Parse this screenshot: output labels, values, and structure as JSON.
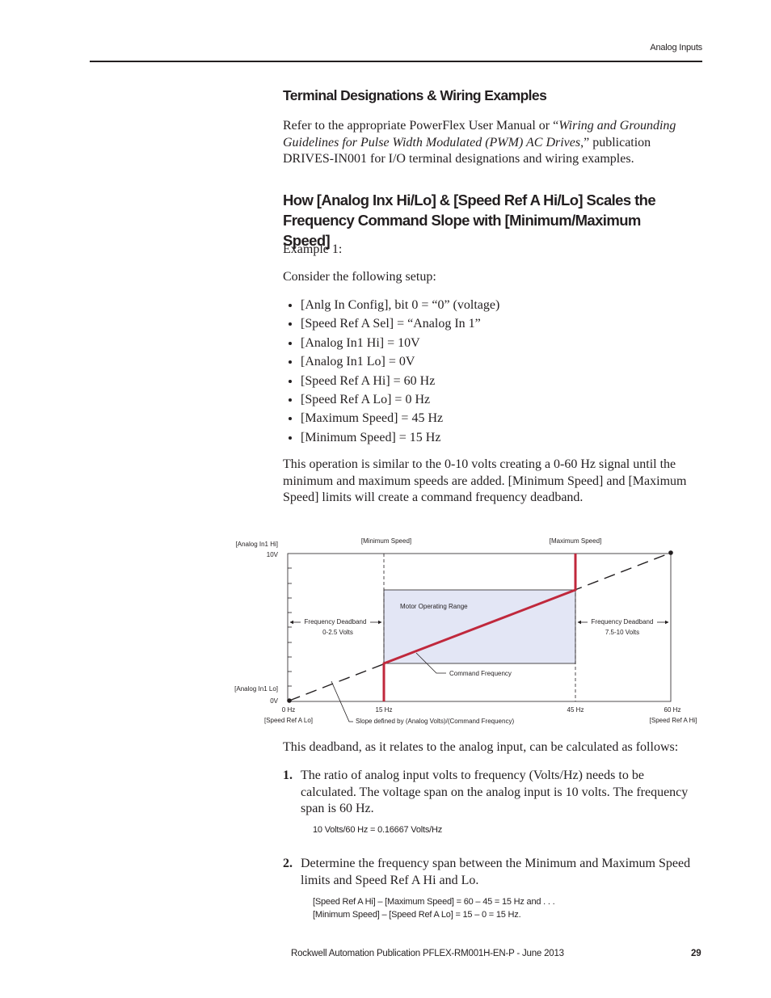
{
  "header_label": "Analog Inputs",
  "heading1": "Terminal Designations & Wiring Examples",
  "intro": {
    "before": "Refer to the appropriate PowerFlex User Manual or “",
    "italic": "Wiring and Grounding Guidelines for Pulse Width Modulated (PWM) AC Drives",
    "after": ",” publication DRIVES-IN001 for I/O terminal designations and wiring examples."
  },
  "heading2": "How [Analog Inx Hi/Lo] & [Speed Ref A Hi/Lo] Scales the Frequency Command Slope with [Minimum/Maximum Speed]",
  "example": "Example 1:",
  "setup_intro": "Consider the following setup:",
  "bullets": [
    "[Anlg In Config], bit 0 = “0” (voltage)",
    "[Speed Ref A Sel] = “Analog In 1”",
    "[Analog In1 Hi] = 10V",
    "[Analog In1 Lo] = 0V",
    "[Speed Ref A Hi] = 60 Hz",
    "[Speed Ref A Lo] = 0 Hz",
    "[Maximum Speed] = 45 Hz",
    "[Minimum Speed] = 15 Hz"
  ],
  "paragraph": "This operation is similar to the 0-10 volts creating a 0-60 Hz signal until the minimum and maximum speeds are added. [Minimum Speed] and [Maximum Speed] limits will create a command frequency deadband.",
  "diagram": {
    "y_hi_name": "[Analog In1 Hi]",
    "y_hi": "10V",
    "y_lo_name": "[Analog In1 Lo]",
    "y_lo": "0V",
    "min_speed": "[Minimum Speed]",
    "max_speed": "[Maximum Speed]",
    "range": "Motor Operating Range",
    "deadband_left": [
      "Frequency Deadband",
      "0-2.5 Volts"
    ],
    "deadband_right": [
      "Frequency Deadband",
      "7.5-10 Volts"
    ],
    "command": "Command Frequency",
    "x_labels": [
      "0 Hz",
      "15 Hz",
      "45 Hz",
      "60 Hz"
    ],
    "x_lo_name": "[Speed Ref A Lo]",
    "x_hi_name": "[Speed Ref A Hi]",
    "slope": "Slope defined by (Analog Volts)/(Command Frequency)"
  },
  "deadband_intro": "This deadband, as it relates to the analog input, can be calculated as follows:",
  "steps": [
    {
      "number": "1.",
      "text": "The ratio of analog input volts to frequency (Volts/Hz) needs to be calculated. The voltage span on the analog input is 10 volts. The frequency span is 60 Hz.",
      "formulas": [
        "10 Volts/60 Hz = 0.16667 Volts/Hz"
      ]
    },
    {
      "number": "2.",
      "text": "Determine the frequency span between the Minimum and Maximum Speed limits and Speed Ref A Hi and Lo.",
      "formulas": [
        "[Speed Ref A Hi] – [Maximum Speed] = 60 – 45 = 15 Hz and . . .",
        "[Minimum Speed] – [Speed Ref A Lo] = 15 – 0 = 15 Hz."
      ]
    }
  ],
  "footer": {
    "publication": "Rockwell Automation Publication PFLEX-RM001H-EN-P - June 2013",
    "page": "29"
  }
}
